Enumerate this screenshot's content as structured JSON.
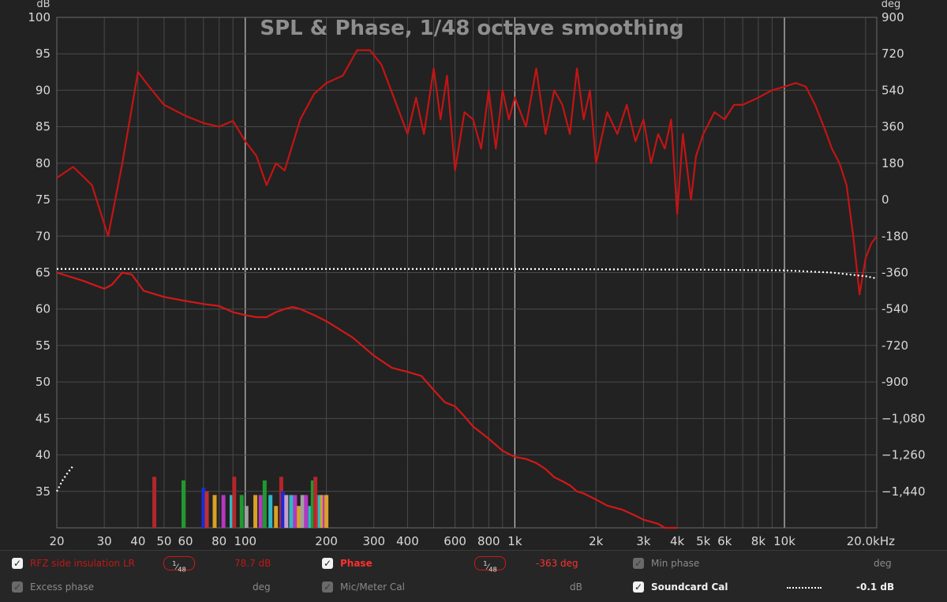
{
  "chart_data": {
    "type": "line",
    "title": "SPL & Phase, 1/48 octave smoothing",
    "left_unit": "dB",
    "right_unit": "deg",
    "x_scale": "log",
    "x_range_hz": [
      20,
      22000
    ],
    "x_ticks": [
      {
        "v": 20,
        "label": "20"
      },
      {
        "v": 30,
        "label": "30"
      },
      {
        "v": 40,
        "label": "40"
      },
      {
        "v": 50,
        "label": "50"
      },
      {
        "v": 60,
        "label": "60"
      },
      {
        "v": 80,
        "label": "80"
      },
      {
        "v": 100,
        "label": "100"
      },
      {
        "v": 200,
        "label": "200"
      },
      {
        "v": 300,
        "label": "300"
      },
      {
        "v": 400,
        "label": "400"
      },
      {
        "v": 600,
        "label": "600"
      },
      {
        "v": 800,
        "label": "800"
      },
      {
        "v": 1000,
        "label": "1k"
      },
      {
        "v": 2000,
        "label": "2k"
      },
      {
        "v": 3000,
        "label": "3k"
      },
      {
        "v": 4000,
        "label": "4k"
      },
      {
        "v": 5000,
        "label": "5k"
      },
      {
        "v": 6000,
        "label": "6k"
      },
      {
        "v": 8000,
        "label": "8k"
      },
      {
        "v": 10000,
        "label": "10k"
      },
      {
        "v": 20000,
        "label": "20.0kHz"
      }
    ],
    "y_left_range": [
      30,
      100
    ],
    "y_left_ticks": [
      "100",
      "95",
      "90",
      "85",
      "80",
      "75",
      "70",
      "65",
      "60",
      "55",
      "50",
      "45",
      "40",
      "35"
    ],
    "y_right_range": [
      -1620,
      900
    ],
    "y_right_ticks": [
      "900",
      "720",
      "540",
      "360",
      "180",
      "0",
      "-180",
      "-360",
      "-540",
      "-720",
      "-900",
      "−1,080",
      "−1,260",
      "−1,440"
    ],
    "grid": true,
    "series": [
      {
        "name": "RFZ side insulation LR",
        "axis": "left",
        "color": "#c41414",
        "x": [
          20,
          23,
          27,
          31,
          35,
          40,
          44,
          50,
          60,
          70,
          80,
          90,
          100,
          110,
          120,
          130,
          140,
          160,
          180,
          200,
          230,
          260,
          290,
          320,
          360,
          400,
          430,
          460,
          500,
          530,
          560,
          600,
          650,
          700,
          750,
          800,
          850,
          900,
          950,
          1000,
          1100,
          1200,
          1300,
          1400,
          1500,
          1600,
          1700,
          1800,
          1900,
          2000,
          2200,
          2400,
          2600,
          2800,
          3000,
          3200,
          3400,
          3600,
          3800,
          4000,
          4200,
          4500,
          4700,
          5000,
          5500,
          6000,
          6500,
          7000,
          8000,
          9000,
          10000,
          11000,
          12000,
          13000,
          14000,
          15000,
          16000,
          17000,
          18000,
          19000,
          20000,
          21000,
          22000
        ],
        "y": [
          78,
          79.5,
          77,
          70,
          80,
          92.5,
          90.5,
          88,
          86.5,
          85.5,
          85,
          85.8,
          83,
          81,
          77,
          80,
          79,
          86,
          89.5,
          91,
          92,
          95.5,
          95.5,
          93.5,
          88.5,
          84,
          89,
          84,
          93,
          86,
          92,
          79,
          87,
          86,
          82,
          90,
          82,
          90,
          86,
          89,
          85,
          93,
          84,
          90,
          88,
          84,
          93,
          86,
          90,
          80,
          87,
          84,
          88,
          83,
          86,
          80,
          84,
          82,
          86,
          73,
          84,
          75,
          81,
          84,
          87,
          86,
          88,
          88,
          89,
          90,
          90.5,
          91,
          90.5,
          88,
          85,
          82,
          80,
          77,
          70,
          62,
          67,
          69,
          70
        ]
      },
      {
        "name": "Phase",
        "axis": "right",
        "color": "#d21818",
        "x": [
          20,
          25,
          30,
          32,
          35,
          38,
          42,
          50,
          60,
          70,
          80,
          90,
          100,
          110,
          120,
          130,
          140,
          150,
          160,
          180,
          200,
          250,
          300,
          350,
          400,
          450,
          500,
          550,
          600,
          650,
          700,
          800,
          900,
          1000,
          1100,
          1200,
          1300,
          1400,
          1500,
          1600,
          1700,
          1800,
          2000,
          2200,
          2500,
          2800,
          3000,
          3200,
          3400,
          3600,
          3800,
          4000
        ],
        "y": [
          -360,
          -400,
          -440,
          -420,
          -360,
          -370,
          -450,
          -480,
          -500,
          -515,
          -525,
          -555,
          -570,
          -580,
          -580,
          -555,
          -540,
          -530,
          -540,
          -570,
          -600,
          -680,
          -770,
          -830,
          -850,
          -870,
          -940,
          -1000,
          -1020,
          -1070,
          -1120,
          -1180,
          -1240,
          -1270,
          -1280,
          -1300,
          -1330,
          -1370,
          -1390,
          -1410,
          -1440,
          -1450,
          -1480,
          -1510,
          -1530,
          -1560,
          -1580,
          -1590,
          -1600,
          -1620,
          -1620,
          -1640
        ]
      },
      {
        "name": "Soundcard Cal",
        "axis": "left",
        "color": "#ffffff",
        "dashed": true,
        "x": [
          20,
          100,
          1000,
          5000,
          10000,
          15000,
          20000,
          22000
        ],
        "y": [
          65.5,
          65.5,
          65.5,
          65.4,
          65.3,
          65.0,
          64.5,
          64.2
        ]
      },
      {
        "name": "Soundcard Cal (low)",
        "axis": "left",
        "color": "#ffffff",
        "dashed": true,
        "x": [
          20,
          21,
          22,
          23
        ],
        "y": [
          35,
          36.5,
          37.6,
          38.5
        ]
      }
    ],
    "markers": {
      "axis": "left",
      "items": [
        {
          "f": 46,
          "top": 37,
          "color": "#b3262a"
        },
        {
          "f": 59,
          "top": 36.5,
          "color": "#1f9a2f"
        },
        {
          "f": 70,
          "top": 35.5,
          "color": "#1a2bd8"
        },
        {
          "f": 72,
          "top": 35,
          "color": "#c03030"
        },
        {
          "f": 77,
          "top": 34.5,
          "color": "#d9a125"
        },
        {
          "f": 83,
          "top": 34.5,
          "color": "#b437c4"
        },
        {
          "f": 89,
          "top": 34.5,
          "color": "#2fb8c4"
        },
        {
          "f": 91,
          "top": 37,
          "color": "#b3262a"
        },
        {
          "f": 97,
          "top": 34.5,
          "color": "#1f9a2f"
        },
        {
          "f": 101,
          "top": 33,
          "color": "#a0a0a0"
        },
        {
          "f": 109,
          "top": 34.5,
          "color": "#d9a125"
        },
        {
          "f": 114,
          "top": 34.5,
          "color": "#b437c4"
        },
        {
          "f": 118,
          "top": 36.5,
          "color": "#1f9a2f"
        },
        {
          "f": 124,
          "top": 34.5,
          "color": "#2fb8c4"
        },
        {
          "f": 130,
          "top": 33,
          "color": "#d9a125"
        },
        {
          "f": 136,
          "top": 37,
          "color": "#b3262a"
        },
        {
          "f": 138,
          "top": 35,
          "color": "#1a2bd8"
        },
        {
          "f": 142,
          "top": 34.5,
          "color": "#c8a0c8"
        },
        {
          "f": 148,
          "top": 34.5,
          "color": "#2fb8c4"
        },
        {
          "f": 153,
          "top": 34.5,
          "color": "#b437c4"
        },
        {
          "f": 158,
          "top": 33,
          "color": "#d9a125"
        },
        {
          "f": 163,
          "top": 34.5,
          "color": "#a0a0a0"
        },
        {
          "f": 168,
          "top": 34.5,
          "color": "#b437c4"
        },
        {
          "f": 174,
          "top": 33,
          "color": "#2fb8c4"
        },
        {
          "f": 178,
          "top": 36.5,
          "color": "#1f9a2f"
        },
        {
          "f": 182,
          "top": 37,
          "color": "#b3262a"
        },
        {
          "f": 186,
          "top": 34.5,
          "color": "#c03030"
        },
        {
          "f": 189,
          "top": 34.5,
          "color": "#2fb8c4"
        },
        {
          "f": 193,
          "top": 34.5,
          "color": "#d9a125"
        },
        {
          "f": 197,
          "top": 34.5,
          "color": "#b437c4"
        },
        {
          "f": 200,
          "top": 34.5,
          "color": "#d9a125"
        }
      ]
    }
  },
  "legend": {
    "row1": {
      "trace1": {
        "label": "RFZ side insulation LR",
        "smoothing_num": "1",
        "smoothing_den": "48",
        "value": "78.7 dB",
        "checked": true,
        "color": "#c01818"
      },
      "trace2": {
        "label": "Phase",
        "smoothing_num": "1",
        "smoothing_den": "48",
        "value": "-363 deg",
        "checked": true,
        "color": "#ff3030"
      },
      "min_phase": {
        "label": "Min phase",
        "unit": "deg",
        "checked": false
      }
    },
    "row2": {
      "excess_phase": {
        "label": "Excess phase",
        "unit": "deg",
        "checked": false
      },
      "mic_cal": {
        "label": "Mic/Meter Cal",
        "unit": "dB",
        "checked": false
      },
      "soundcard_cal": {
        "label": "Soundcard Cal",
        "value": "-0.1 dB",
        "checked": true
      }
    }
  }
}
